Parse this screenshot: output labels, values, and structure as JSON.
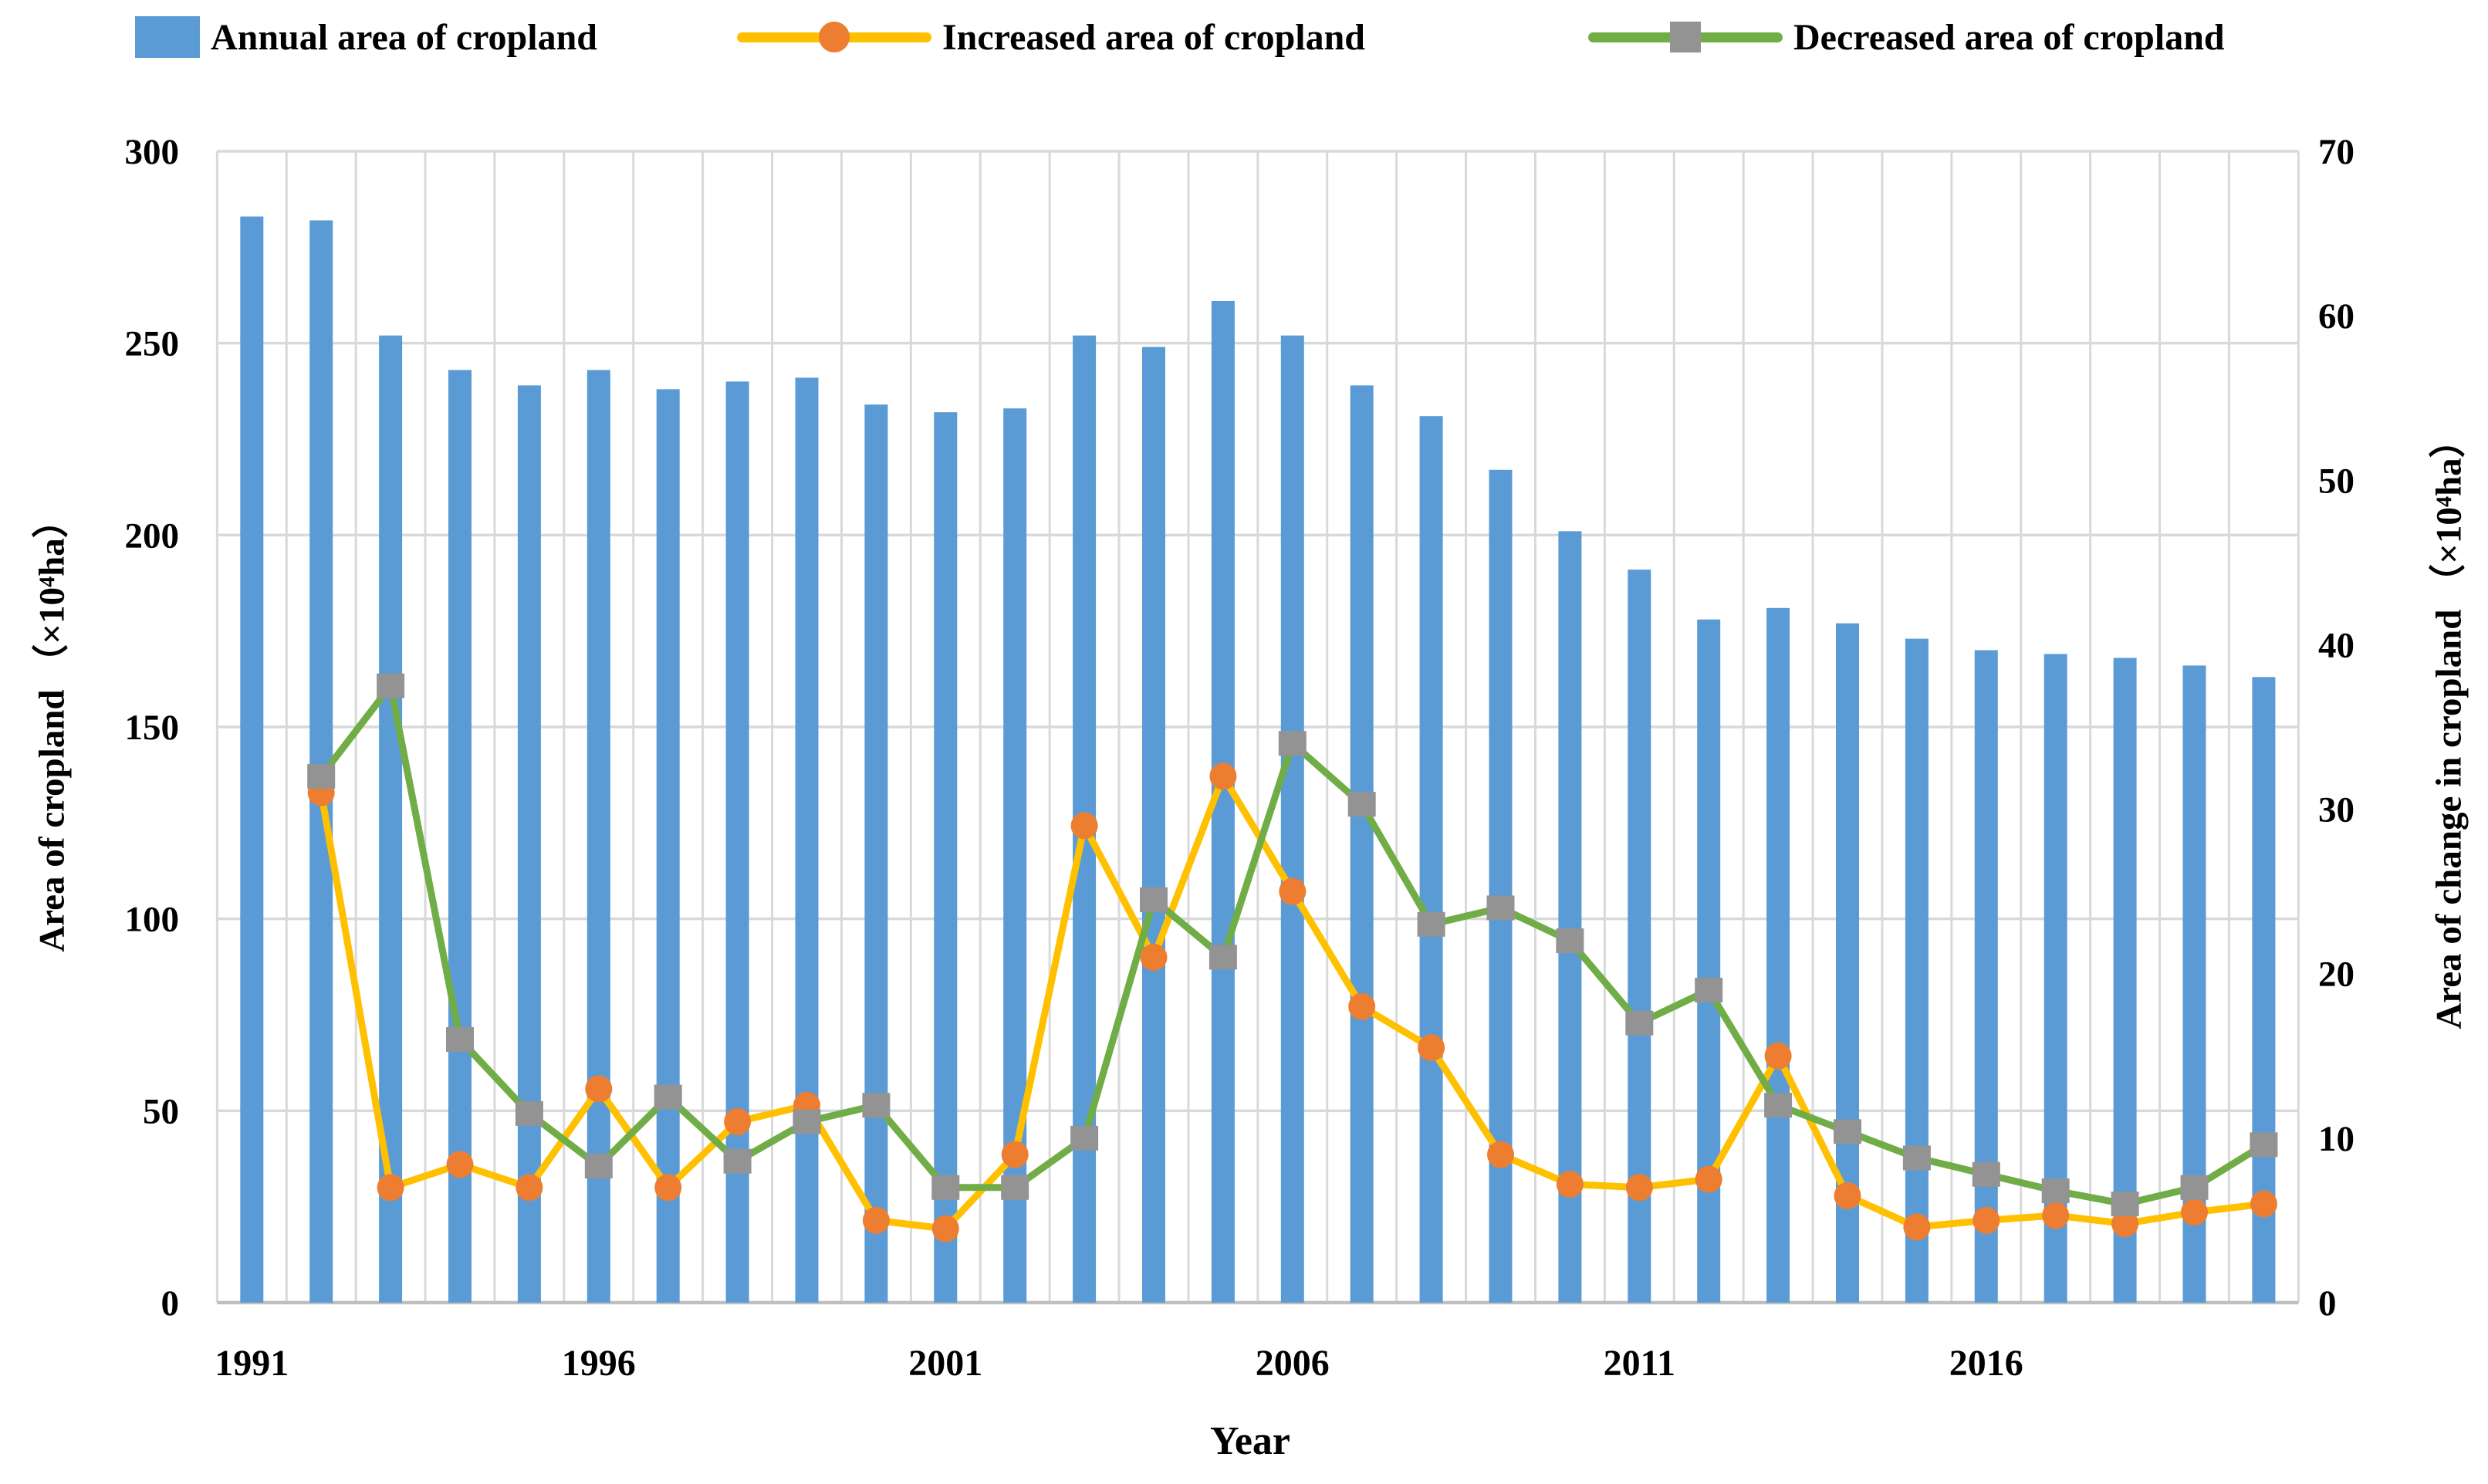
{
  "chart_data": {
    "type": "combo-bar-line",
    "title": "",
    "x_axis": {
      "label": "Year",
      "tick_labels": [
        "1991",
        "1996",
        "2001",
        "2006",
        "2011",
        "2016"
      ],
      "tick_years": [
        1991,
        1996,
        2001,
        2006,
        2011,
        2016
      ]
    },
    "left_axis": {
      "label": "Area of cropland （×10⁴ha）",
      "min": 0,
      "max": 300,
      "step": 50,
      "tick_labels": [
        "0",
        "50",
        "100",
        "150",
        "200",
        "250",
        "300"
      ]
    },
    "right_axis": {
      "label": "Area of change in cropland （×10⁴ha）",
      "min": 0,
      "max": 70,
      "step": 10,
      "tick_labels": [
        "0",
        "10",
        "20",
        "30",
        "40",
        "50",
        "60",
        "70"
      ]
    },
    "grid": true,
    "legend_position": "top",
    "years": [
      1991,
      1992,
      1993,
      1994,
      1995,
      1996,
      1997,
      1998,
      1999,
      2000,
      2001,
      2002,
      2003,
      2004,
      2005,
      2006,
      2007,
      2008,
      2009,
      2010,
      2011,
      2012,
      2013,
      2014,
      2015,
      2016,
      2017,
      2018,
      2019,
      2020
    ],
    "series": [
      {
        "name": "Annual area of cropland",
        "type": "bar",
        "axis": "left",
        "color": "#5B9BD5",
        "values": [
          283,
          282,
          252,
          243,
          239,
          243,
          238,
          240,
          241,
          234,
          232,
          233,
          252,
          249,
          261,
          252,
          239,
          231,
          217,
          201,
          191,
          178,
          181,
          177,
          173,
          170,
          169,
          168,
          166,
          163
        ]
      },
      {
        "name": "Increased area of cropland",
        "type": "line",
        "axis": "right",
        "color": "#FFC000",
        "marker": "circle",
        "marker_color": "#ED7D31",
        "values": [
          null,
          31,
          7,
          8.4,
          7,
          13,
          7,
          11,
          12,
          5,
          4.5,
          9,
          29,
          21,
          32,
          25,
          18,
          15.5,
          9,
          7.2,
          7,
          7.5,
          15,
          6.5,
          4.6,
          5,
          5.3,
          4.8,
          5.5,
          6
        ]
      },
      {
        "name": "Decreased area of cropland",
        "type": "line",
        "axis": "right",
        "color": "#70AD47",
        "marker": "square",
        "marker_color": "#939393",
        "values": [
          null,
          32,
          37.5,
          16,
          11.5,
          8.3,
          12.5,
          8.6,
          11,
          12,
          7,
          7,
          10,
          24.5,
          21,
          34,
          30.3,
          23,
          24,
          22,
          17,
          19,
          12,
          10.4,
          8.8,
          7.8,
          6.8,
          6,
          7,
          9.6
        ]
      }
    ],
    "colors": {
      "gridline": "#D9D9D9",
      "axis_line": "#BFBFBF",
      "background": "#FFFFFF"
    }
  }
}
